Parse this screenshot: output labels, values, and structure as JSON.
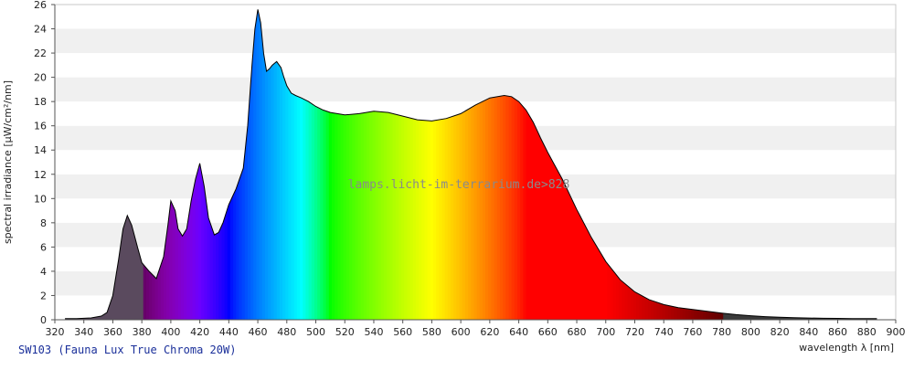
{
  "caption": "SW103 (Fauna Lux True Chroma 20W)",
  "watermark": "lamps.licht-im-terrarium.de>828",
  "chart_data": {
    "type": "area",
    "xlabel": "wavelength λ [nm]",
    "ylabel": "spectral irradiance [µW/cm²/nm]",
    "xlim": [
      320,
      900
    ],
    "ylim": [
      0,
      26
    ],
    "x_ticks": [
      320,
      340,
      360,
      380,
      400,
      420,
      440,
      460,
      480,
      500,
      520,
      540,
      560,
      580,
      600,
      620,
      640,
      660,
      680,
      700,
      720,
      740,
      760,
      780,
      800,
      820,
      840,
      860,
      880,
      900
    ],
    "y_ticks": [
      0,
      2,
      4,
      6,
      8,
      10,
      12,
      14,
      16,
      18,
      20,
      22,
      24,
      26
    ],
    "grid": "horizontal-bands",
    "fill": "visible-spectrum-colored",
    "series": [
      {
        "x": [
          327,
          335,
          345,
          352,
          356,
          360,
          364,
          367,
          370,
          373,
          377,
          380,
          385,
          390,
          395,
          398,
          400,
          403,
          405,
          408,
          411,
          414,
          417,
          420,
          423,
          426,
          430,
          433,
          436,
          440,
          445,
          450,
          453,
          456,
          458,
          460,
          462,
          464,
          466,
          468,
          470,
          473,
          476,
          478,
          480,
          483,
          486,
          490,
          495,
          500,
          505,
          510,
          520,
          530,
          540,
          550,
          560,
          570,
          580,
          590,
          600,
          610,
          620,
          630,
          635,
          640,
          645,
          650,
          655,
          660,
          670,
          680,
          690,
          700,
          710,
          720,
          730,
          740,
          750,
          760,
          770,
          780,
          790,
          800,
          810,
          820,
          830,
          840,
          850,
          860,
          870,
          880,
          887
        ],
        "y": [
          0.1,
          0.1,
          0.15,
          0.3,
          0.6,
          2.0,
          5.0,
          7.5,
          8.6,
          7.8,
          6.0,
          4.7,
          4.0,
          3.4,
          5.2,
          7.8,
          9.8,
          9.0,
          7.5,
          6.9,
          7.5,
          9.8,
          11.6,
          12.9,
          11.0,
          8.4,
          7.0,
          7.2,
          8.0,
          9.5,
          10.8,
          12.5,
          16.0,
          21.0,
          24.0,
          25.6,
          24.5,
          22.0,
          20.5,
          20.7,
          21.0,
          21.3,
          20.8,
          20.0,
          19.3,
          18.7,
          18.5,
          18.3,
          18.0,
          17.6,
          17.3,
          17.1,
          16.9,
          17.0,
          17.2,
          17.1,
          16.8,
          16.5,
          16.4,
          16.6,
          17.0,
          17.7,
          18.3,
          18.5,
          18.4,
          18.0,
          17.3,
          16.3,
          15.0,
          13.8,
          11.6,
          9.1,
          6.8,
          4.8,
          3.3,
          2.3,
          1.65,
          1.25,
          1.0,
          0.85,
          0.7,
          0.55,
          0.42,
          0.33,
          0.26,
          0.2,
          0.17,
          0.14,
          0.12,
          0.11,
          0.1,
          0.1,
          0.1
        ]
      }
    ]
  }
}
